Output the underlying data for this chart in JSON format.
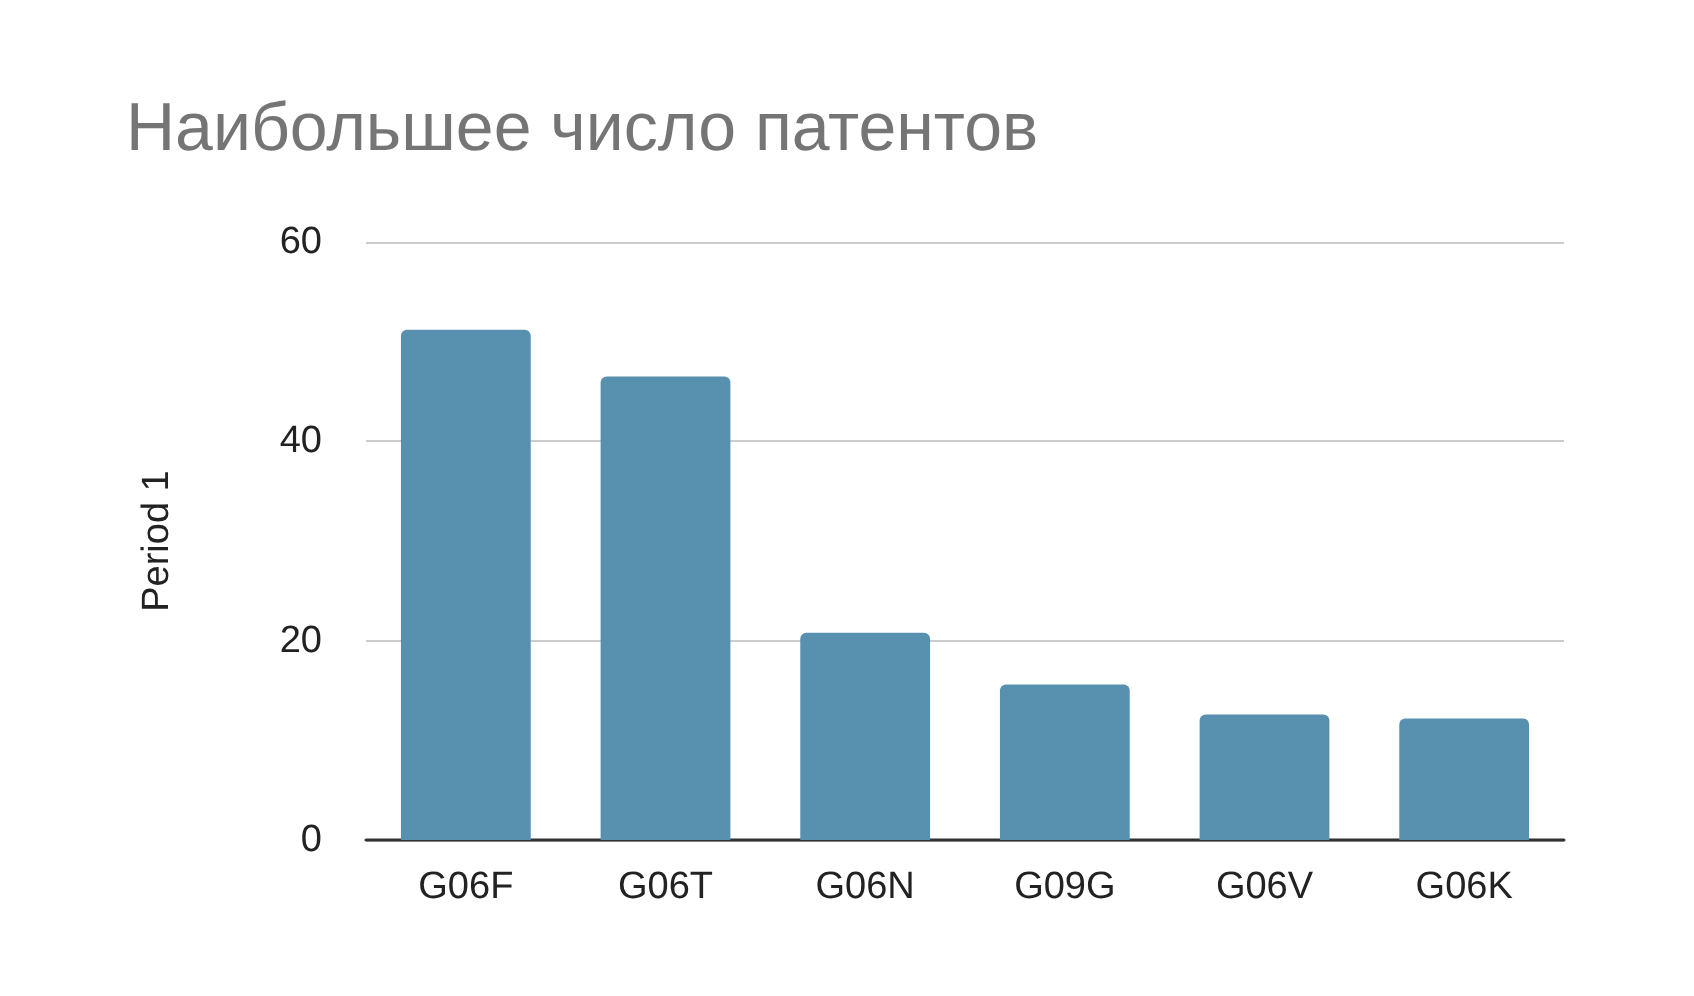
{
  "chart_data": {
    "type": "bar",
    "title": "Наибольшее число патентов",
    "ylabel": "Period 1",
    "categories": [
      "G06F",
      "G06T",
      "G06N",
      "G09G",
      "G06V",
      "G06K"
    ],
    "values": [
      51.2,
      46.5,
      20.8,
      15.6,
      12.6,
      12.2
    ],
    "color": "#5891b0",
    "ylim": [
      0,
      60
    ],
    "yticks": [
      0,
      20,
      40,
      60
    ],
    "grid": "y"
  }
}
